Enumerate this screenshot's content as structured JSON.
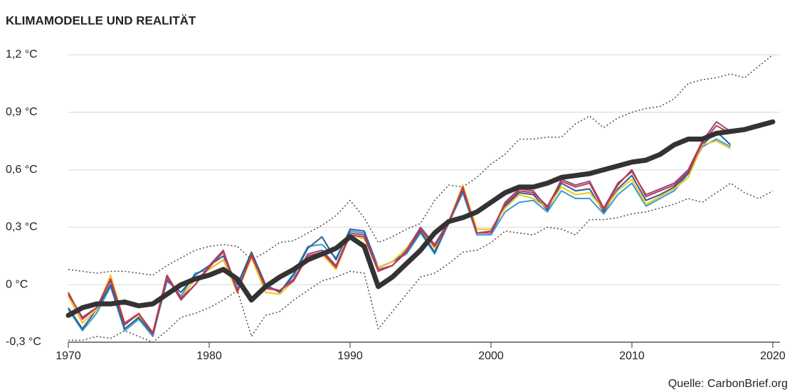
{
  "chart_data": {
    "type": "line",
    "title": "KLIMAMODELLE UND REALITÄT",
    "source": "Quelle: CarbonBrief.org",
    "x": [
      1970,
      1971,
      1972,
      1973,
      1974,
      1975,
      1976,
      1977,
      1978,
      1979,
      1980,
      1981,
      1982,
      1983,
      1984,
      1985,
      1986,
      1987,
      1988,
      1989,
      1990,
      1991,
      1992,
      1993,
      1994,
      1995,
      1996,
      1997,
      1998,
      1999,
      2000,
      2001,
      2002,
      2003,
      2004,
      2005,
      2006,
      2007,
      2008,
      2009,
      2010,
      2011,
      2012,
      2013,
      2014,
      2015,
      2016,
      2017,
      2018,
      2019,
      2020
    ],
    "xlim": [
      1970,
      2020
    ],
    "xticks": [
      1970,
      1980,
      1990,
      2000,
      2010,
      2020
    ],
    "ylim": [
      -0.3,
      1.2
    ],
    "yticks": [
      {
        "value": -0.3,
        "label": "-0,3 °C"
      },
      {
        "value": 0,
        "label": "0 °C"
      },
      {
        "value": 0.3,
        "label": "0,3 °C"
      },
      {
        "value": 0.6,
        "label": "0,6 °C"
      },
      {
        "value": 0.9,
        "label": "0,9 °C"
      },
      {
        "value": 1.2,
        "label": "1,2 °C"
      }
    ],
    "grid": true,
    "series": [
      {
        "color": "#555555",
        "style": "dotted",
        "values": [
          0.08,
          0.07,
          0.06,
          0.07,
          0.07,
          0.06,
          0.05,
          0.1,
          0.14,
          0.18,
          0.2,
          0.21,
          0.2,
          0.13,
          0.17,
          0.22,
          0.23,
          0.27,
          0.31,
          0.36,
          0.44,
          0.35,
          0.22,
          0.25,
          0.29,
          0.32,
          0.44,
          0.52,
          0.51,
          0.56,
          0.63,
          0.68,
          0.76,
          0.76,
          0.77,
          0.77,
          0.84,
          0.88,
          0.82,
          0.87,
          0.9,
          0.92,
          0.93,
          0.97,
          1.05,
          1.07,
          1.08,
          1.1,
          1.08,
          1.14,
          1.2
        ]
      },
      {
        "color": "#555555",
        "style": "dotted",
        "values": [
          -0.29,
          -0.29,
          -0.27,
          -0.28,
          -0.24,
          -0.27,
          -0.3,
          -0.24,
          -0.17,
          -0.15,
          -0.12,
          -0.08,
          -0.03,
          -0.27,
          -0.16,
          -0.14,
          -0.08,
          -0.03,
          0.02,
          0.04,
          0.07,
          0.06,
          -0.23,
          -0.14,
          -0.05,
          0.04,
          0.06,
          0.11,
          0.17,
          0.18,
          0.22,
          0.28,
          0.27,
          0.26,
          0.3,
          0.29,
          0.26,
          0.34,
          0.34,
          0.35,
          0.37,
          0.38,
          0.4,
          0.42,
          0.45,
          0.43,
          0.48,
          0.53,
          0.48,
          0.45,
          0.49
        ]
      },
      {
        "color": "#3a9bd5",
        "style": "solid",
        "values": [
          -0.13,
          -0.24,
          -0.15,
          -0.01,
          -0.24,
          -0.18,
          -0.27,
          0.03,
          -0.06,
          0.06,
          0.08,
          0.13,
          -0.02,
          0.17,
          0.0,
          -0.04,
          0.06,
          0.2,
          0.21,
          0.14,
          0.28,
          0.27,
          0.09,
          0.12,
          0.16,
          0.27,
          0.16,
          0.32,
          0.48,
          0.26,
          0.26,
          0.38,
          0.43,
          0.44,
          0.38,
          0.49,
          0.45,
          0.45,
          0.37,
          0.47,
          0.53,
          0.41,
          0.45,
          0.49,
          0.58,
          0.72,
          0.76,
          0.72,
          null,
          null,
          null
        ]
      },
      {
        "color": "#2a5d8f",
        "style": "solid",
        "values": [
          -0.12,
          -0.23,
          -0.13,
          0.0,
          -0.23,
          -0.17,
          -0.26,
          0.02,
          -0.04,
          0.05,
          0.1,
          0.15,
          0.0,
          0.17,
          0.0,
          -0.04,
          0.05,
          0.19,
          0.25,
          0.13,
          0.29,
          0.28,
          0.09,
          0.12,
          0.17,
          0.28,
          0.17,
          0.33,
          0.49,
          0.27,
          0.27,
          0.41,
          0.48,
          0.47,
          0.39,
          0.53,
          0.49,
          0.5,
          0.38,
          0.5,
          0.57,
          0.44,
          0.47,
          0.51,
          0.58,
          0.73,
          0.8,
          0.73,
          null,
          null,
          null
        ]
      },
      {
        "color": "#f0c419",
        "style": "solid",
        "values": [
          -0.06,
          -0.2,
          -0.13,
          0.05,
          -0.2,
          -0.16,
          -0.25,
          0.04,
          -0.07,
          0.03,
          0.08,
          0.13,
          -0.04,
          0.14,
          -0.04,
          -0.05,
          0.02,
          0.15,
          0.16,
          0.08,
          0.26,
          0.24,
          0.09,
          0.12,
          0.19,
          0.29,
          0.19,
          0.33,
          0.52,
          0.29,
          0.29,
          0.4,
          0.47,
          0.45,
          0.4,
          0.51,
          0.47,
          0.48,
          0.39,
          0.49,
          0.55,
          0.42,
          0.46,
          0.5,
          0.56,
          0.73,
          0.75,
          0.71,
          null,
          null,
          null
        ]
      },
      {
        "color": "#8e4b8a",
        "style": "solid",
        "values": [
          -0.05,
          -0.17,
          -0.12,
          0.02,
          -0.21,
          -0.15,
          -0.26,
          0.04,
          -0.08,
          0.0,
          0.1,
          0.18,
          -0.03,
          0.15,
          -0.01,
          -0.03,
          0.03,
          0.16,
          0.18,
          0.1,
          0.27,
          0.26,
          0.08,
          0.1,
          0.18,
          0.3,
          0.21,
          0.33,
          0.5,
          0.27,
          0.27,
          0.43,
          0.5,
          0.49,
          0.4,
          0.55,
          0.52,
          0.54,
          0.4,
          0.53,
          0.59,
          0.47,
          0.5,
          0.53,
          0.6,
          0.75,
          0.85,
          0.8,
          null,
          null,
          null
        ]
      },
      {
        "color": "#c0394a",
        "style": "solid",
        "values": [
          -0.04,
          -0.18,
          -0.12,
          0.03,
          -0.2,
          -0.15,
          -0.25,
          0.05,
          -0.07,
          0.0,
          0.09,
          0.17,
          -0.04,
          0.16,
          -0.02,
          -0.03,
          0.02,
          0.15,
          0.17,
          0.09,
          0.26,
          0.25,
          0.07,
          0.1,
          0.17,
          0.29,
          0.2,
          0.32,
          0.51,
          0.27,
          0.28,
          0.42,
          0.49,
          0.48,
          0.41,
          0.54,
          0.51,
          0.53,
          0.39,
          0.52,
          0.6,
          0.46,
          0.49,
          0.52,
          0.59,
          0.74,
          0.83,
          0.79,
          null,
          null,
          null
        ]
      },
      {
        "color": "#333333",
        "style": "thick",
        "values": [
          -0.16,
          -0.12,
          -0.1,
          -0.1,
          -0.09,
          -0.11,
          -0.1,
          -0.05,
          0.0,
          0.03,
          0.05,
          0.08,
          0.03,
          -0.08,
          -0.01,
          0.04,
          0.08,
          0.13,
          0.16,
          0.19,
          0.25,
          0.2,
          -0.01,
          0.04,
          0.11,
          0.18,
          0.27,
          0.33,
          0.35,
          0.38,
          0.43,
          0.48,
          0.51,
          0.51,
          0.53,
          0.56,
          0.57,
          0.58,
          0.6,
          0.62,
          0.64,
          0.65,
          0.68,
          0.73,
          0.76,
          0.76,
          0.79,
          0.8,
          0.81,
          0.83,
          0.85
        ]
      }
    ]
  }
}
